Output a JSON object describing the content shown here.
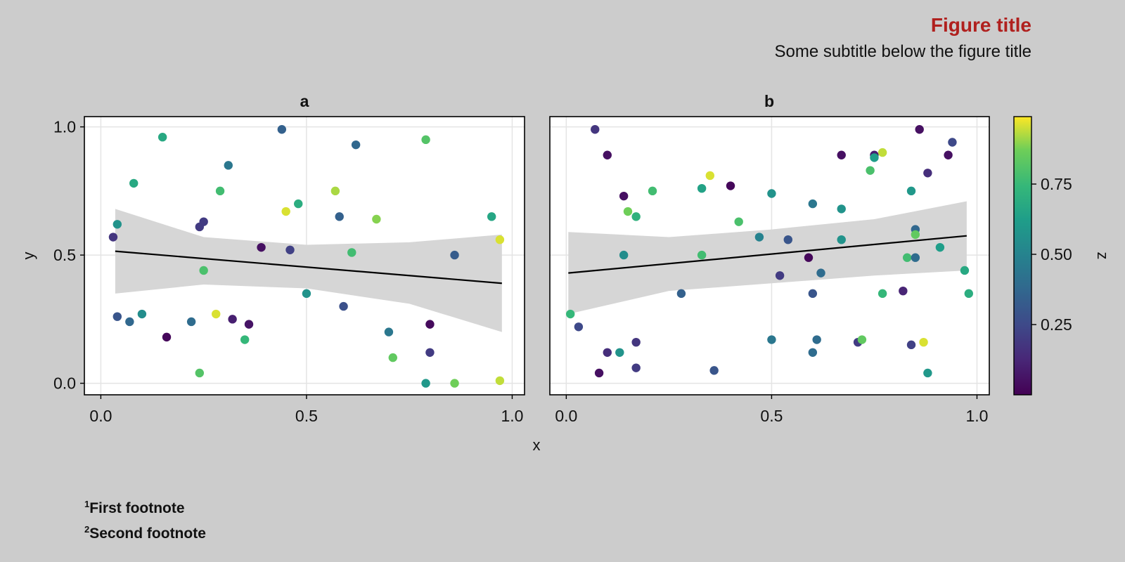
{
  "figure": {
    "title": "Figure title",
    "subtitle": "Some subtitle below the figure title",
    "title_color": "#b0201e",
    "background": "#cccccc"
  },
  "footnotes": [
    {
      "mark": "1",
      "text": "First footnote"
    },
    {
      "mark": "2",
      "text": "Second footnote"
    }
  ],
  "chart_data": [
    {
      "type": "scatter",
      "title": "a",
      "xlabel": "x",
      "ylabel": "y",
      "xlim": [
        -0.04,
        1.03
      ],
      "ylim": [
        -0.045,
        1.04
      ],
      "xticks": [
        "0.0",
        "0.5",
        "1.0"
      ],
      "yticks": [
        "0.0",
        "0.5",
        "1.0"
      ],
      "grid": true,
      "points": [
        [
          0.04,
          0.62,
          0.58
        ],
        [
          0.03,
          0.57,
          0.18
        ],
        [
          0.08,
          0.78,
          0.68
        ],
        [
          0.15,
          0.96,
          0.68
        ],
        [
          0.31,
          0.85,
          0.45
        ],
        [
          0.29,
          0.75,
          0.78
        ],
        [
          0.44,
          0.99,
          0.35
        ],
        [
          0.62,
          0.93,
          0.38
        ],
        [
          0.79,
          0.95,
          0.82
        ],
        [
          0.57,
          0.75,
          0.93
        ],
        [
          0.67,
          0.64,
          0.9
        ],
        [
          0.45,
          0.67,
          0.97
        ],
        [
          0.48,
          0.7,
          0.7
        ],
        [
          0.58,
          0.65,
          0.35
        ],
        [
          0.95,
          0.65,
          0.67
        ],
        [
          0.25,
          0.63,
          0.2
        ],
        [
          0.24,
          0.61,
          0.2
        ],
        [
          0.39,
          0.53,
          0.05
        ],
        [
          0.46,
          0.52,
          0.22
        ],
        [
          0.61,
          0.51,
          0.78
        ],
        [
          0.86,
          0.5,
          0.33
        ],
        [
          0.97,
          0.56,
          0.97
        ],
        [
          0.25,
          0.44,
          0.8
        ],
        [
          0.5,
          0.35,
          0.58
        ],
        [
          0.04,
          0.26,
          0.3
        ],
        [
          0.07,
          0.24,
          0.38
        ],
        [
          0.1,
          0.27,
          0.55
        ],
        [
          0.22,
          0.24,
          0.4
        ],
        [
          0.32,
          0.25,
          0.1
        ],
        [
          0.36,
          0.23,
          0.06
        ],
        [
          0.16,
          0.18,
          0.02
        ],
        [
          0.28,
          0.27,
          0.97
        ],
        [
          0.35,
          0.17,
          0.75
        ],
        [
          0.59,
          0.3,
          0.28
        ],
        [
          0.7,
          0.2,
          0.45
        ],
        [
          0.8,
          0.23,
          0.03
        ],
        [
          0.8,
          0.12,
          0.2
        ],
        [
          0.71,
          0.1,
          0.85
        ],
        [
          0.24,
          0.04,
          0.82
        ],
        [
          0.79,
          0.0,
          0.6
        ],
        [
          0.86,
          0.0,
          0.88
        ],
        [
          0.97,
          0.01,
          0.95
        ]
      ],
      "fit": {
        "x": [
          0.035,
          0.975
        ],
        "y": [
          0.515,
          0.39
        ],
        "band_x": [
          0.035,
          0.25,
          0.5,
          0.75,
          0.975
        ],
        "band_lower": [
          0.35,
          0.385,
          0.37,
          0.31,
          0.2
        ],
        "band_upper": [
          0.68,
          0.57,
          0.54,
          0.55,
          0.58
        ]
      }
    },
    {
      "type": "scatter",
      "title": "b",
      "xlabel": "",
      "ylabel": "",
      "xlim": [
        -0.04,
        1.03
      ],
      "ylim": [
        -0.045,
        1.04
      ],
      "xticks": [
        "0.0",
        "0.5",
        "1.0"
      ],
      "yticks": [],
      "grid": true,
      "points": [
        [
          0.07,
          0.99,
          0.18
        ],
        [
          0.1,
          0.89,
          0.05
        ],
        [
          0.35,
          0.81,
          0.97
        ],
        [
          0.4,
          0.77,
          0.02
        ],
        [
          0.14,
          0.73,
          0.05
        ],
        [
          0.21,
          0.75,
          0.78
        ],
        [
          0.33,
          0.76,
          0.65
        ],
        [
          0.5,
          0.74,
          0.58
        ],
        [
          0.15,
          0.67,
          0.88
        ],
        [
          0.17,
          0.65,
          0.72
        ],
        [
          0.42,
          0.63,
          0.8
        ],
        [
          0.6,
          0.7,
          0.45
        ],
        [
          0.67,
          0.68,
          0.58
        ],
        [
          0.67,
          0.89,
          0.05
        ],
        [
          0.75,
          0.89,
          0.1
        ],
        [
          0.77,
          0.9,
          0.95
        ],
        [
          0.75,
          0.88,
          0.63
        ],
        [
          0.74,
          0.83,
          0.8
        ],
        [
          0.86,
          0.99,
          0.05
        ],
        [
          0.93,
          0.89,
          0.05
        ],
        [
          0.94,
          0.94,
          0.25
        ],
        [
          0.88,
          0.82,
          0.15
        ],
        [
          0.84,
          0.75,
          0.6
        ],
        [
          0.85,
          0.6,
          0.38
        ],
        [
          0.85,
          0.58,
          0.85
        ],
        [
          0.83,
          0.49,
          0.78
        ],
        [
          0.85,
          0.49,
          0.4
        ],
        [
          0.91,
          0.53,
          0.63
        ],
        [
          0.97,
          0.44,
          0.68
        ],
        [
          0.98,
          0.35,
          0.7
        ],
        [
          0.47,
          0.57,
          0.5
        ],
        [
          0.54,
          0.56,
          0.3
        ],
        [
          0.67,
          0.56,
          0.58
        ],
        [
          0.14,
          0.5,
          0.55
        ],
        [
          0.33,
          0.5,
          0.78
        ],
        [
          0.59,
          0.49,
          0.02
        ],
        [
          0.52,
          0.42,
          0.2
        ],
        [
          0.62,
          0.43,
          0.4
        ],
        [
          0.6,
          0.35,
          0.3
        ],
        [
          0.28,
          0.35,
          0.35
        ],
        [
          0.77,
          0.35,
          0.75
        ],
        [
          0.82,
          0.36,
          0.12
        ],
        [
          0.01,
          0.27,
          0.75
        ],
        [
          0.03,
          0.22,
          0.25
        ],
        [
          0.17,
          0.16,
          0.18
        ],
        [
          0.1,
          0.12,
          0.15
        ],
        [
          0.13,
          0.12,
          0.58
        ],
        [
          0.08,
          0.04,
          0.05
        ],
        [
          0.17,
          0.06,
          0.2
        ],
        [
          0.36,
          0.05,
          0.3
        ],
        [
          0.5,
          0.17,
          0.45
        ],
        [
          0.6,
          0.12,
          0.4
        ],
        [
          0.61,
          0.17,
          0.4
        ],
        [
          0.71,
          0.16,
          0.2
        ],
        [
          0.72,
          0.17,
          0.85
        ],
        [
          0.84,
          0.15,
          0.22
        ],
        [
          0.87,
          0.16,
          0.97
        ],
        [
          0.88,
          0.04,
          0.6
        ]
      ],
      "fit": {
        "x": [
          0.005,
          0.975
        ],
        "y": [
          0.43,
          0.575
        ],
        "band_x": [
          0.005,
          0.25,
          0.5,
          0.75,
          0.975
        ],
        "band_lower": [
          0.27,
          0.36,
          0.39,
          0.42,
          0.44
        ],
        "band_upper": [
          0.59,
          0.57,
          0.6,
          0.64,
          0.71
        ]
      }
    }
  ],
  "colorbar": {
    "label": "z",
    "colormap": "viridis",
    "range": [
      0.0,
      1.0
    ],
    "ticks": [
      {
        "value": 0.25,
        "label": "0.25"
      },
      {
        "value": 0.5,
        "label": "0.50"
      },
      {
        "value": 0.75,
        "label": "0.75"
      }
    ]
  },
  "shared_xlabel": "x"
}
